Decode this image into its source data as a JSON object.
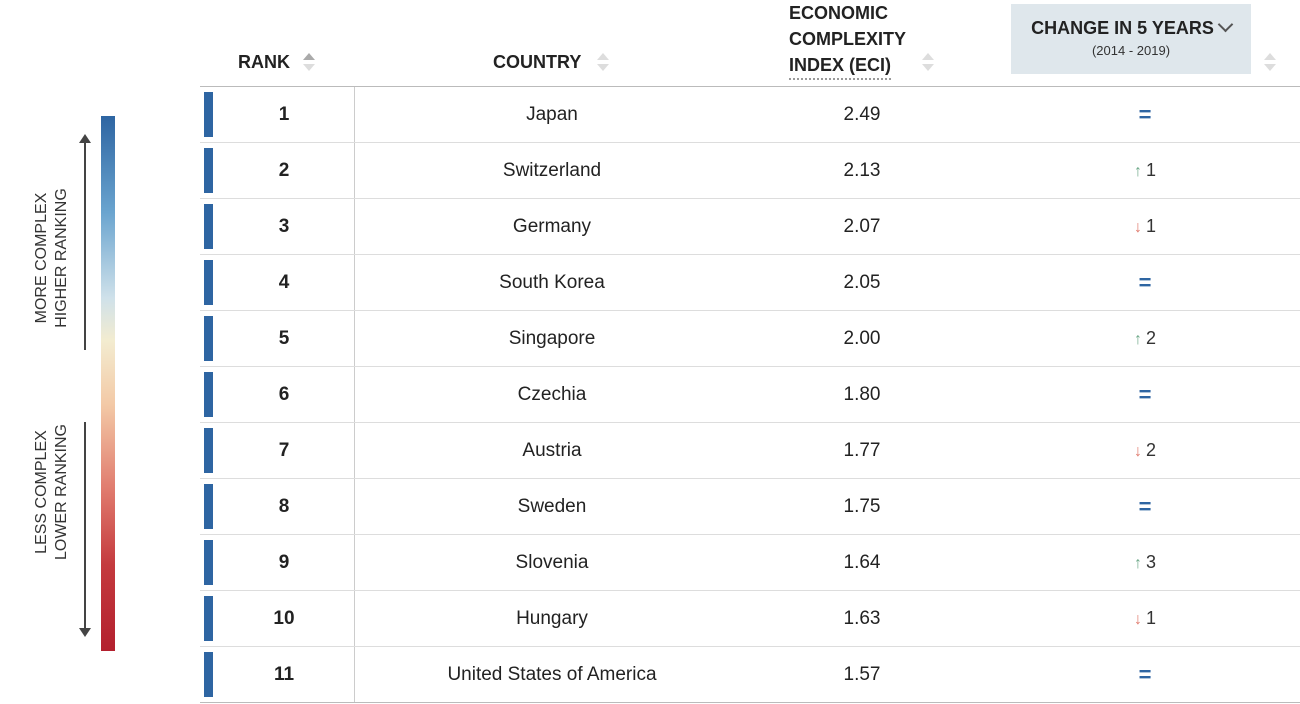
{
  "legend": {
    "more_line1": "MORE COMPLEX",
    "more_line2": "HIGHER RANKING",
    "less_line1": "LESS COMPLEX",
    "less_line2": "LOWER RANKING"
  },
  "headers": {
    "rank": "RANK",
    "country": "COUNTRY",
    "eci_line1": "ECONOMIC",
    "eci_line2": "COMPLEXITY",
    "eci_line3": "INDEX (ECI)",
    "change_title": "CHANGE IN 5 YEARS",
    "change_sub": "(2014 - 2019)"
  },
  "colors": {
    "accent": "#2e65a2",
    "up": "#6fa98a",
    "down": "#e07a6d",
    "header_bg": "#dfe7ec"
  },
  "rows": [
    {
      "rank": "1",
      "country": "Japan",
      "eci": "2.49",
      "dir": "eq",
      "change": ""
    },
    {
      "rank": "2",
      "country": "Switzerland",
      "eci": "2.13",
      "dir": "up",
      "change": "1"
    },
    {
      "rank": "3",
      "country": "Germany",
      "eci": "2.07",
      "dir": "down",
      "change": "1"
    },
    {
      "rank": "4",
      "country": "South Korea",
      "eci": "2.05",
      "dir": "eq",
      "change": ""
    },
    {
      "rank": "5",
      "country": "Singapore",
      "eci": "2.00",
      "dir": "up",
      "change": "2"
    },
    {
      "rank": "6",
      "country": "Czechia",
      "eci": "1.80",
      "dir": "eq",
      "change": ""
    },
    {
      "rank": "7",
      "country": "Austria",
      "eci": "1.77",
      "dir": "down",
      "change": "2"
    },
    {
      "rank": "8",
      "country": "Sweden",
      "eci": "1.75",
      "dir": "eq",
      "change": ""
    },
    {
      "rank": "9",
      "country": "Slovenia",
      "eci": "1.64",
      "dir": "up",
      "change": "3"
    },
    {
      "rank": "10",
      "country": "Hungary",
      "eci": "1.63",
      "dir": "down",
      "change": "1"
    },
    {
      "rank": "11",
      "country": "United States of America",
      "eci": "1.57",
      "dir": "eq",
      "change": ""
    }
  ]
}
